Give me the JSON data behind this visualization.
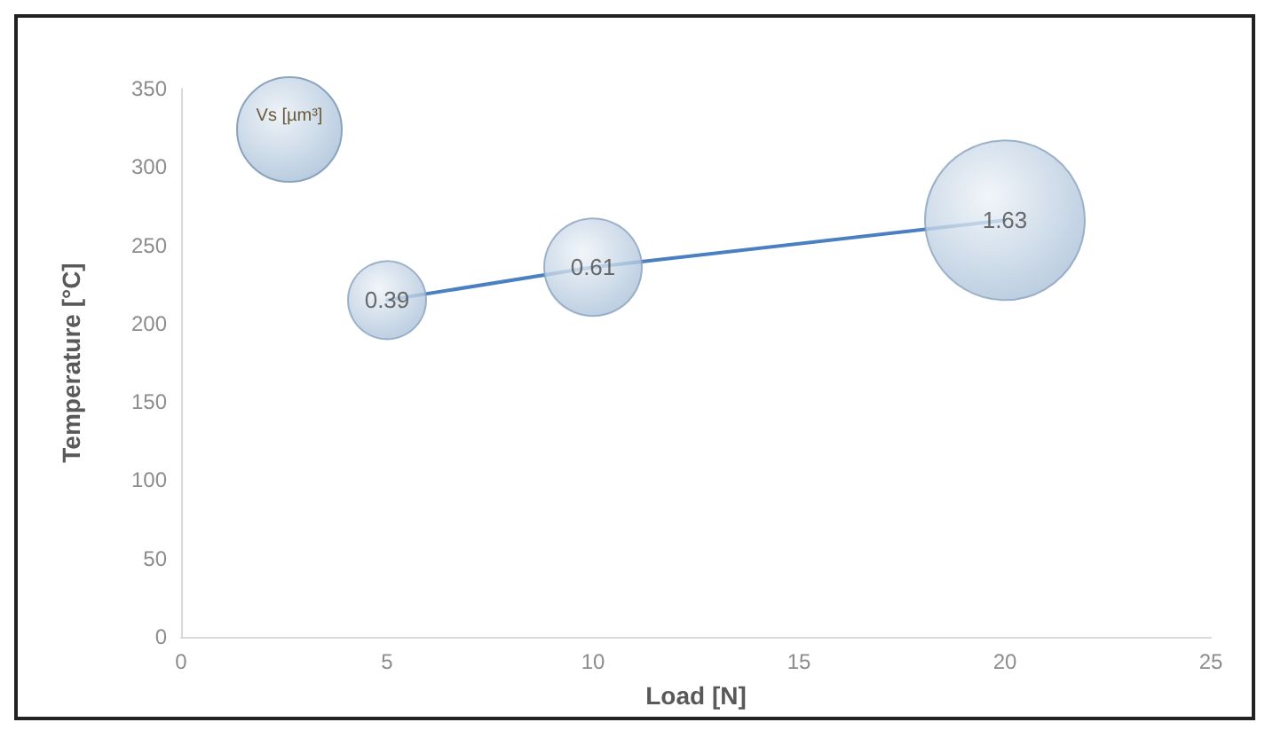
{
  "chart_data": {
    "type": "bubble",
    "xlabel": "Load [N]",
    "ylabel": "Temperature [°C]",
    "legend_title": "Vs [µm³]",
    "x": [
      5,
      10,
      20
    ],
    "series": [
      {
        "type": "bubble",
        "color": "#a9c0d8",
        "values": [
          215,
          236,
          266
        ],
        "sizes": [
          0.39,
          0.61,
          1.63
        ],
        "value_labels": [
          "0.39",
          "0.61",
          "1.63"
        ]
      },
      {
        "type": "line",
        "color": "#4a7fc1",
        "values": [
          215,
          236,
          266
        ],
        "marker": "none"
      }
    ],
    "xlim": [
      0,
      25
    ],
    "xticks": [
      0,
      5,
      10,
      15,
      20,
      25
    ],
    "ylim": [
      0,
      350
    ],
    "yticks": [
      0,
      50,
      100,
      150,
      200,
      250,
      300,
      350
    ],
    "grid": false
  }
}
